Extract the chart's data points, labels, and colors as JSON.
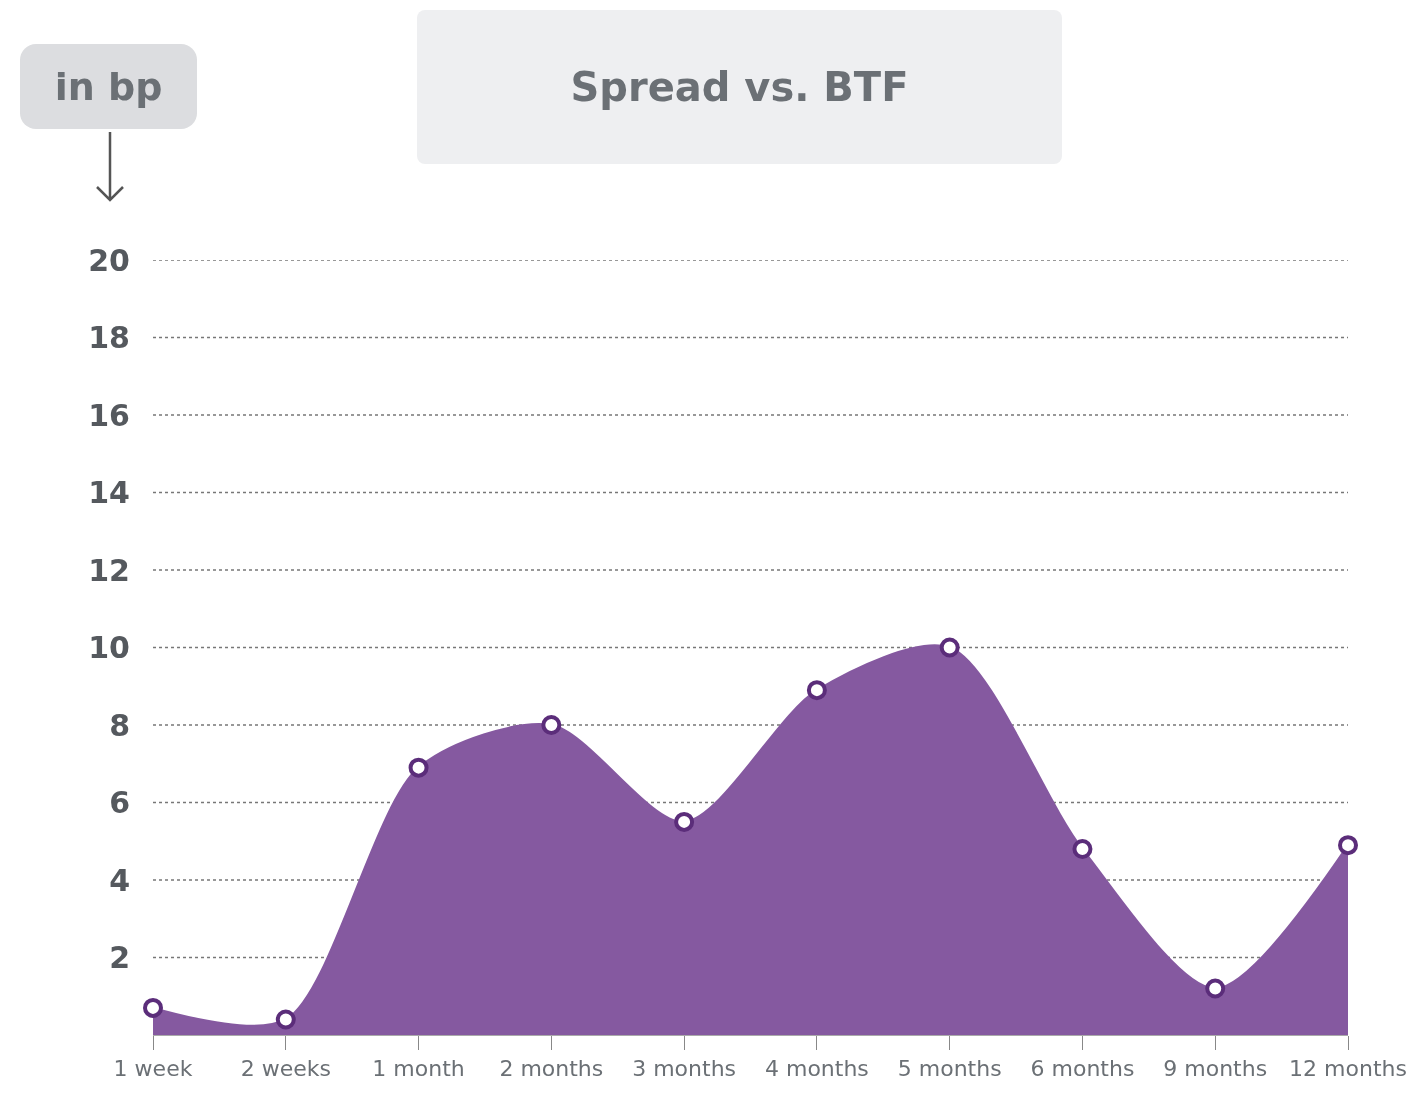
{
  "chart_data": {
    "type": "area",
    "title": "Spread vs. BTF",
    "ylabel": "in bp",
    "categories": [
      "1 week",
      "2 weeks",
      "1 month",
      "2 months",
      "3 months",
      "4 months",
      "5 months",
      "6 months",
      "9 months",
      "12 months"
    ],
    "series": [
      {
        "color": "#8559a0",
        "values": [
          0.7,
          0.4,
          6.9,
          8.0,
          5.5,
          8.9,
          10,
          4.8,
          1.2,
          4.9
        ]
      }
    ],
    "ylim": [
      0,
      20
    ],
    "yticks": [
      2,
      4,
      6,
      8,
      10,
      12,
      14,
      16,
      18,
      20
    ],
    "grid": "y",
    "marker": "circle"
  }
}
